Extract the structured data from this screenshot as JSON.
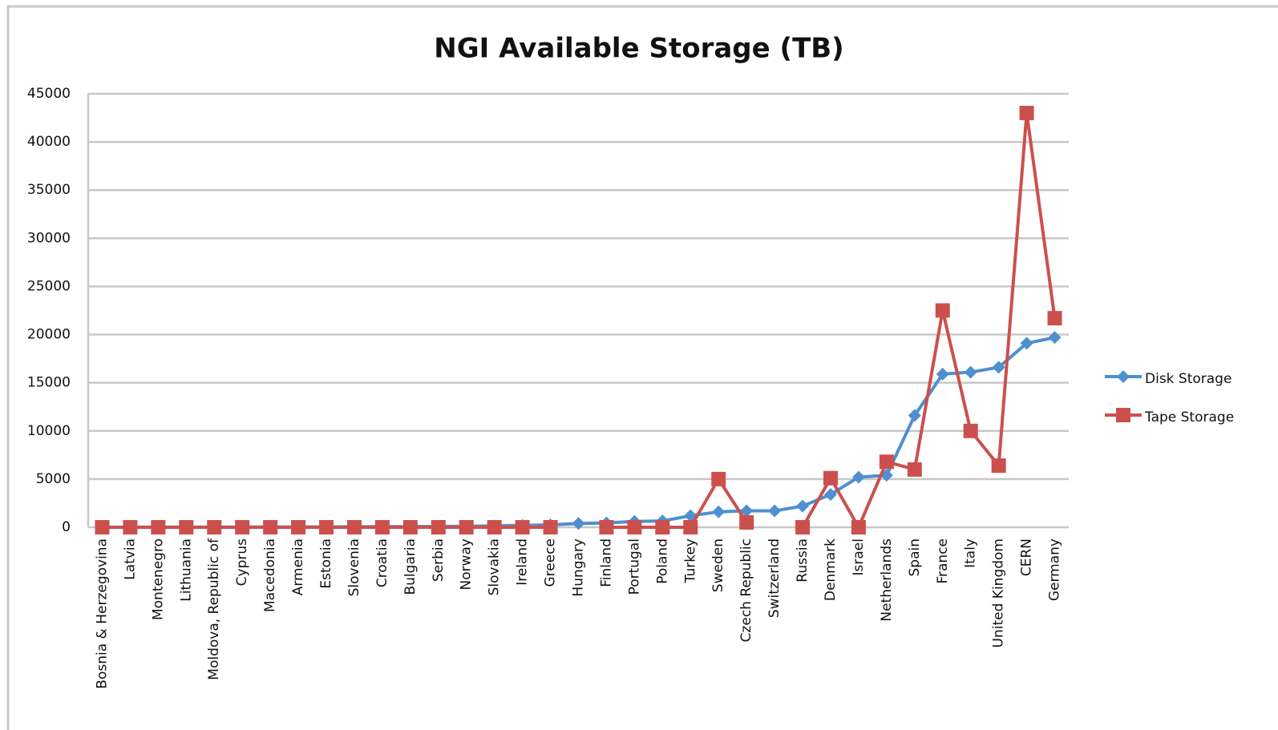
{
  "chart_data": {
    "type": "line",
    "title": "NGI Available Storage (TB)",
    "categories": [
      "Bosnia & Herzegovina",
      "Latvia",
      "Montenegro",
      "Lithuania",
      "Moldova, Republic of",
      "Cyprus",
      "Macedonia",
      "Armenia",
      "Estonia",
      "Slovenia",
      "Croatia",
      "Bulgaria",
      "Serbia",
      "Norway",
      "Slovakia",
      "Ireland",
      "Greece",
      "Hungary",
      "Finland",
      "Portugal",
      "Poland",
      "Turkey",
      "Sweden",
      "Czech Republic",
      "Switzerland",
      "Russia",
      "Denmark",
      "Israel",
      "Netherlands",
      "Spain",
      "France",
      "Italy",
      "United Kingdom",
      "CERN",
      "Germany"
    ],
    "series": [
      {
        "name": "Disk Storage",
        "color": "#4f8fcf",
        "marker": "diamond",
        "values": [
          10,
          10,
          15,
          20,
          20,
          25,
          30,
          35,
          40,
          50,
          60,
          70,
          80,
          100,
          150,
          200,
          250,
          400,
          450,
          600,
          650,
          1200,
          1600,
          1700,
          1700,
          2200,
          3400,
          5200,
          5400,
          11600,
          15900,
          16100,
          16600,
          19100,
          19700
        ]
      },
      {
        "name": "Tape Storage",
        "color": "#cb504d",
        "marker": "square",
        "values": [
          0,
          0,
          0,
          0,
          0,
          0,
          0,
          0,
          0,
          0,
          0,
          0,
          0,
          0,
          0,
          0,
          0,
          null,
          0,
          0,
          0,
          0,
          5000,
          500,
          null,
          0,
          5100,
          0,
          6800,
          6000,
          22500,
          10000,
          6400,
          43000,
          21700
        ]
      }
    ],
    "ylim": [
      0,
      45000
    ],
    "yticks": [
      0,
      5000,
      10000,
      15000,
      20000,
      25000,
      30000,
      35000,
      40000,
      45000
    ],
    "grid": true,
    "legend": "right"
  }
}
